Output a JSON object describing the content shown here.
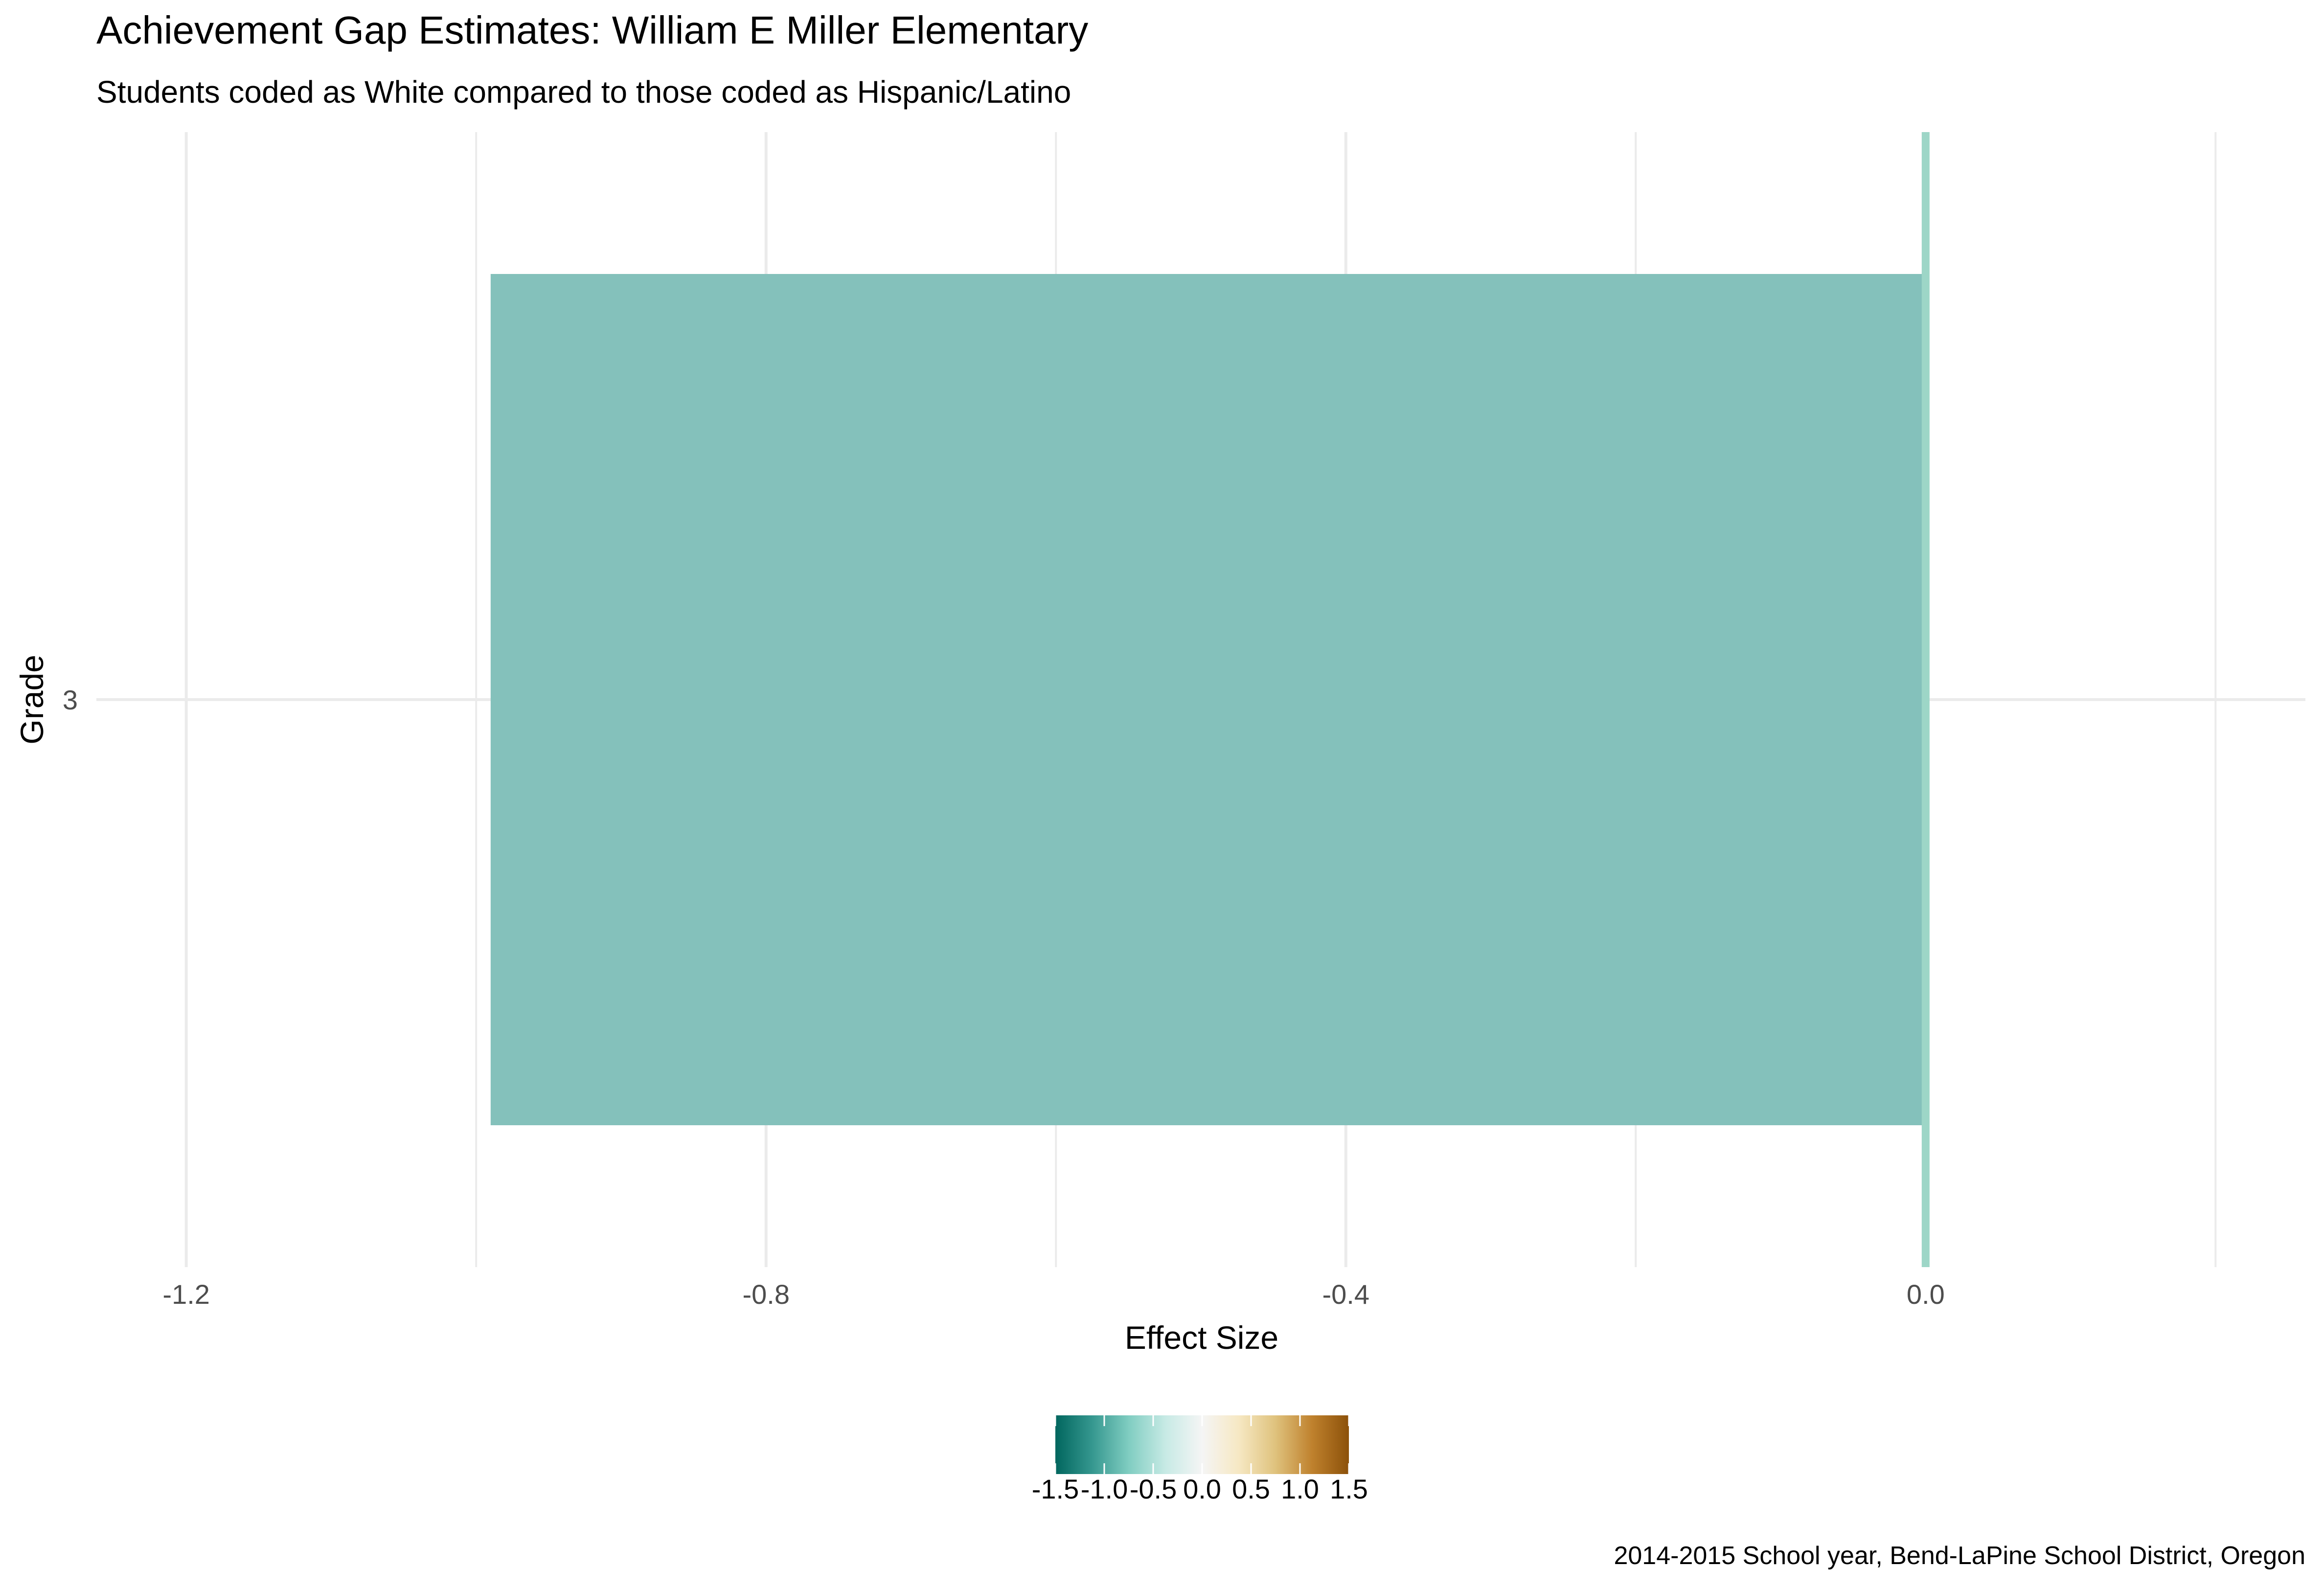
{
  "chart_data": {
    "type": "bar",
    "orientation": "horizontal",
    "title": "Achievement Gap Estimates: William E Miller Elementary",
    "subtitle": "Students coded as White compared to those coded as Hispanic/Latino",
    "caption": "2014-2015 School year, Bend-LaPine School District, Oregon",
    "xlabel": "Effect Size",
    "ylabel": "Grade",
    "categories": [
      "3"
    ],
    "values": [
      -0.99
    ],
    "xlim": [
      -1.262,
      0.262
    ],
    "x_ticks": [
      -1.2,
      -0.8,
      -0.4,
      0.0
    ],
    "x_tick_labels": [
      "-1.2",
      "-0.8",
      "-0.4",
      "0.0"
    ],
    "x_minor_ticks": [
      -1.0,
      -0.6,
      -0.2,
      0.2
    ],
    "reference_line": 0.0,
    "grid": true,
    "bar_color": "#84c1bb",
    "reference_line_color": "#9dd6c7",
    "gridline_color": "#ebebeb",
    "legend": {
      "type": "colorbar",
      "position": "bottom",
      "range": [
        -1.5,
        1.5
      ],
      "ticks": [
        -1.5,
        -1.0,
        -0.5,
        0.0,
        0.5,
        1.0,
        1.5
      ],
      "tick_labels": [
        "-1.5",
        "-1.0",
        "-0.5",
        "0.0",
        "0.5",
        "1.0",
        "1.5"
      ],
      "colors": [
        "#01665e",
        "#35978f",
        "#80cdc1",
        "#c7eae5",
        "#f5f5f5",
        "#f6e8c3",
        "#dfc27d",
        "#bf812d",
        "#8c510a"
      ]
    }
  }
}
